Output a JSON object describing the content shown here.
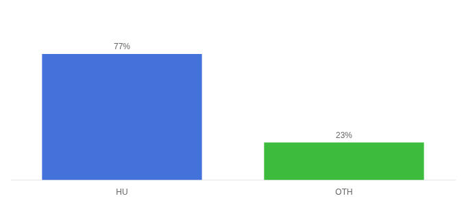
{
  "chart_data": {
    "type": "bar",
    "categories": [
      "HU",
      "OTH"
    ],
    "values": [
      77,
      23
    ],
    "value_labels": [
      "77%",
      "23%"
    ],
    "colors": [
      "#4472db",
      "#3dbb3d"
    ],
    "ylim": [
      0,
      100
    ],
    "grid": false,
    "tick_labels": "x",
    "data_labels": true
  }
}
